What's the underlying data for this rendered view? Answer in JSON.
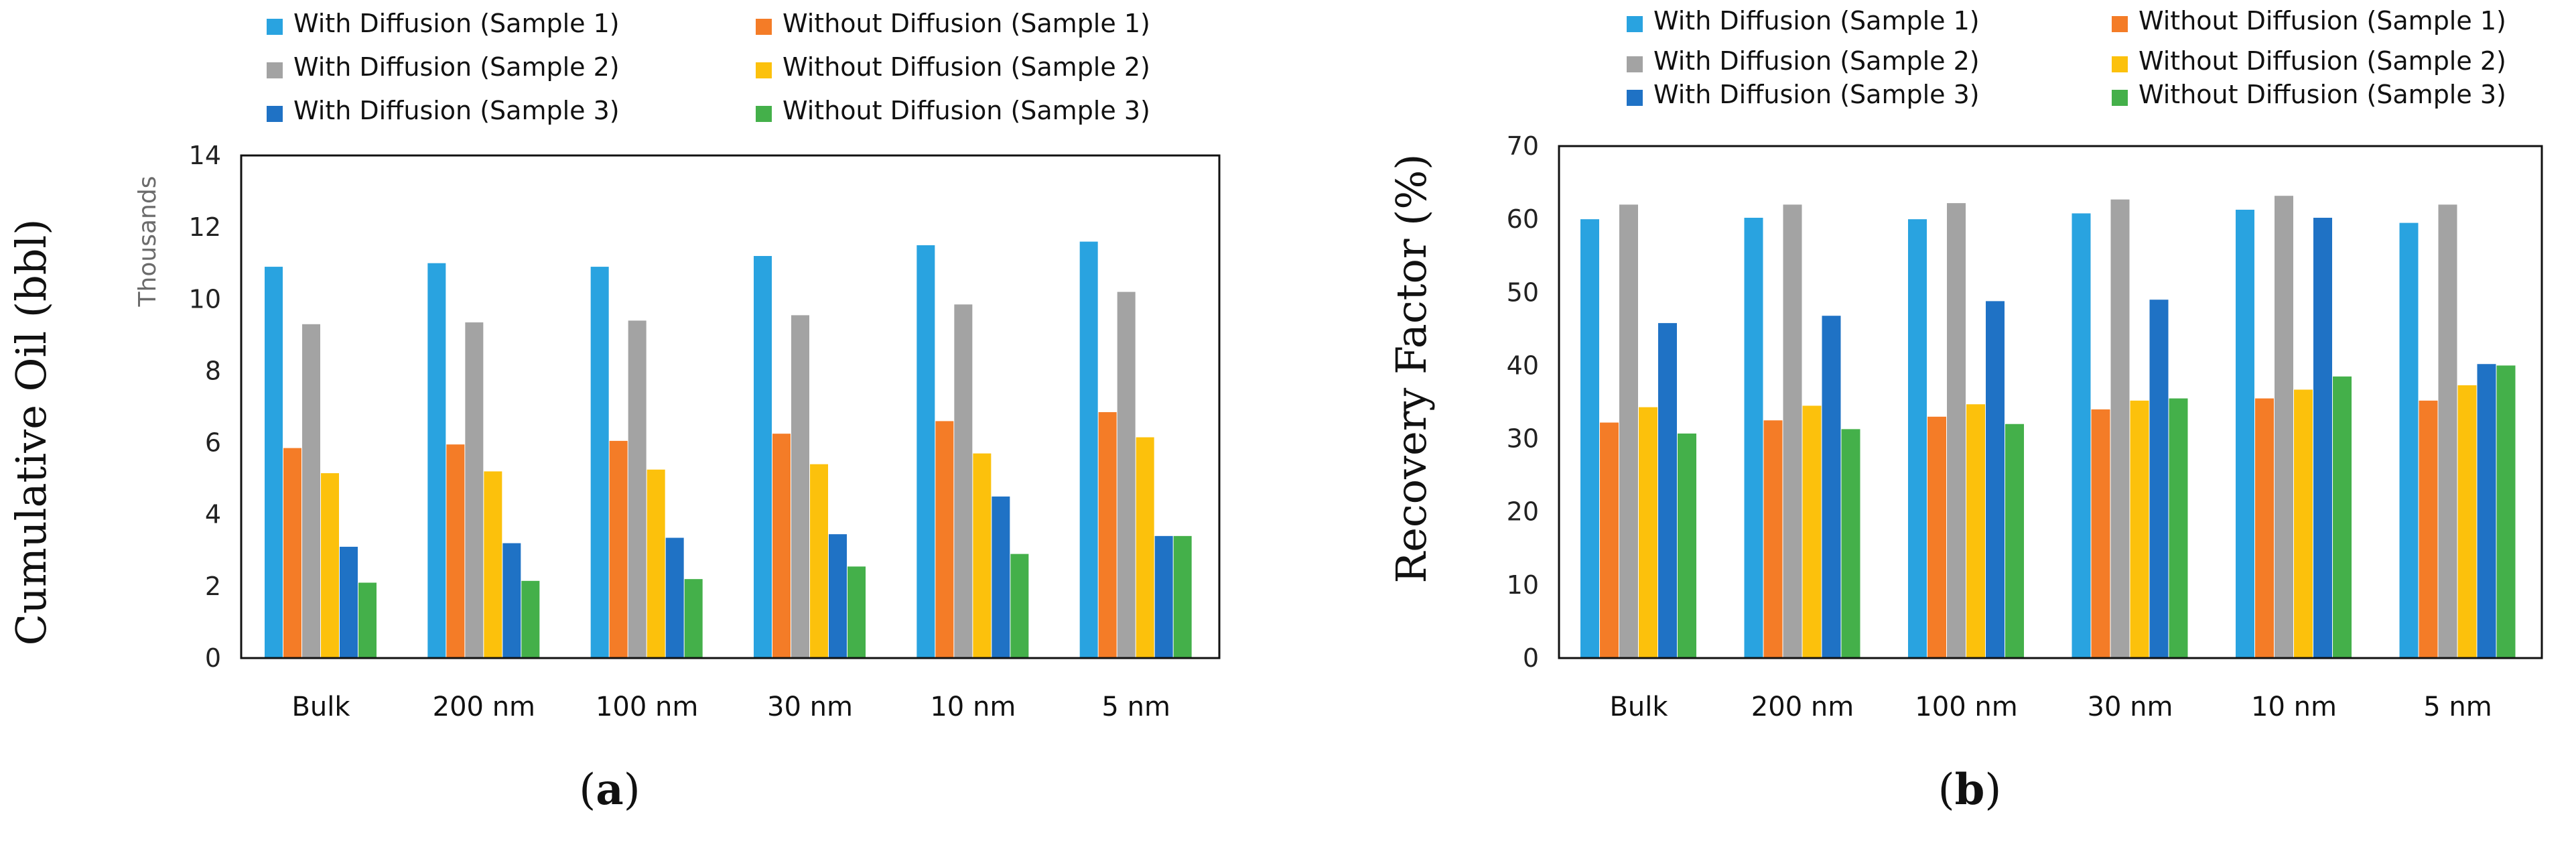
{
  "colors": {
    "with_s1": "#29a3e0",
    "without_s1": "#f47c27",
    "with_s2": "#a3a3a3",
    "without_s2": "#fcc10c",
    "with_s3": "#1f72c5",
    "without_s3": "#44b04a"
  },
  "panel_labels": {
    "a_open": "(",
    "a_letter": "a",
    "a_close": ")",
    "b_open": "(",
    "b_letter": "b",
    "b_close": ")"
  },
  "chart_data": [
    {
      "type": "bar",
      "ylabel": "Cumulative Oil (bbl)",
      "unit_label": "Thousands",
      "categories": [
        "Bulk",
        "200 nm",
        "100 nm",
        "30 nm",
        "10 nm",
        "5 nm"
      ],
      "ylim": [
        0,
        14
      ],
      "yticks": [
        "0",
        "2",
        "4",
        "6",
        "8",
        "10",
        "12",
        "14"
      ],
      "ytick_values": [
        0,
        2,
        4,
        6,
        8,
        10,
        12,
        14
      ],
      "legend_position": "top",
      "series": [
        {
          "name": "With Diffusion (Sample 1)",
          "color_key": "with_s1",
          "values": [
            10.9,
            11.0,
            10.9,
            11.2,
            11.5,
            11.6
          ]
        },
        {
          "name": "Without Diffusion (Sample 1)",
          "color_key": "without_s1",
          "values": [
            5.85,
            5.95,
            6.05,
            6.25,
            6.6,
            6.85
          ]
        },
        {
          "name": "With Diffusion (Sample 2)",
          "color_key": "with_s2",
          "values": [
            9.3,
            9.35,
            9.4,
            9.55,
            9.85,
            10.2
          ]
        },
        {
          "name": "Without Diffusion (Sample 2)",
          "color_key": "without_s2",
          "values": [
            5.15,
            5.2,
            5.25,
            5.4,
            5.7,
            6.15
          ]
        },
        {
          "name": "With Diffusion (Sample 3)",
          "color_key": "with_s3",
          "values": [
            3.1,
            3.2,
            3.35,
            3.45,
            4.5,
            3.4
          ]
        },
        {
          "name": "Without Diffusion (Sample 3)",
          "color_key": "without_s3",
          "values": [
            2.1,
            2.15,
            2.2,
            2.55,
            2.9,
            3.4
          ]
        }
      ]
    },
    {
      "type": "bar",
      "ylabel": "Recovery Factor (%)",
      "categories": [
        "Bulk",
        "200 nm",
        "100 nm",
        "30 nm",
        "10 nm",
        "5 nm"
      ],
      "ylim": [
        0,
        70
      ],
      "yticks": [
        "0",
        "10",
        "20",
        "30",
        "40",
        "50",
        "60",
        "70"
      ],
      "ytick_values": [
        0,
        10,
        20,
        30,
        40,
        50,
        60,
        70
      ],
      "legend_position": "top",
      "series": [
        {
          "name": "With Diffusion (Sample 1)",
          "color_key": "with_s1",
          "values": [
            60.0,
            60.2,
            60.0,
            60.8,
            61.3,
            59.5
          ]
        },
        {
          "name": "Without Diffusion (Sample 1)",
          "color_key": "without_s1",
          "values": [
            32.2,
            32.5,
            33.0,
            34.0,
            35.5,
            35.2
          ]
        },
        {
          "name": "With Diffusion (Sample 2)",
          "color_key": "with_s2",
          "values": [
            62.0,
            62.0,
            62.2,
            62.7,
            63.2,
            62.0
          ]
        },
        {
          "name": "Without Diffusion (Sample 2)",
          "color_key": "without_s2",
          "values": [
            34.3,
            34.5,
            34.7,
            35.2,
            36.7,
            37.3
          ]
        },
        {
          "name": "With Diffusion (Sample 3)",
          "color_key": "with_s3",
          "values": [
            45.8,
            46.8,
            48.8,
            49.0,
            60.2,
            40.2
          ]
        },
        {
          "name": "Without Diffusion (Sample 3)",
          "color_key": "without_s3",
          "values": [
            30.7,
            31.3,
            32.0,
            35.5,
            38.5,
            40.0
          ]
        }
      ]
    }
  ]
}
